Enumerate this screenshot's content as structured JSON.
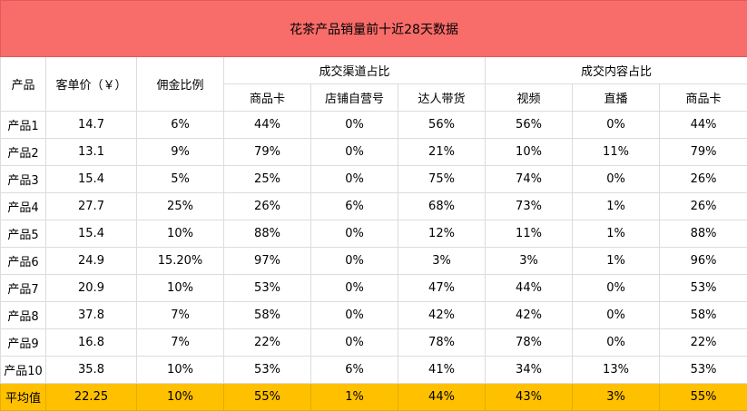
{
  "title": "花茶产品销量前十近28天数据",
  "headers": {
    "product": "产品",
    "unit_price": "客单价（￥）",
    "commission": "佣金比例",
    "channel_group": "成交渠道占比",
    "content_group": "成交内容占比",
    "channel_cols": [
      "商品卡",
      "店铺自营号",
      "达人带货"
    ],
    "content_cols": [
      "视频",
      "直播",
      "商品卡"
    ]
  },
  "rows": [
    {
      "product": "产品1",
      "price": "14.7",
      "commission": "6%",
      "ch_card": "44%",
      "ch_self": "0%",
      "ch_kol": "56%",
      "ct_video": "56%",
      "ct_live": "0%",
      "ct_card": "44%"
    },
    {
      "product": "产品2",
      "price": "13.1",
      "commission": "9%",
      "ch_card": "79%",
      "ch_self": "0%",
      "ch_kol": "21%",
      "ct_video": "10%",
      "ct_live": "11%",
      "ct_card": "79%"
    },
    {
      "product": "产品3",
      "price": "15.4",
      "commission": "5%",
      "ch_card": "25%",
      "ch_self": "0%",
      "ch_kol": "75%",
      "ct_video": "74%",
      "ct_live": "0%",
      "ct_card": "26%"
    },
    {
      "product": "产品4",
      "price": "27.7",
      "commission": "25%",
      "ch_card": "26%",
      "ch_self": "6%",
      "ch_kol": "68%",
      "ct_video": "73%",
      "ct_live": "1%",
      "ct_card": "26%"
    },
    {
      "product": "产品5",
      "price": "15.4",
      "commission": "10%",
      "ch_card": "88%",
      "ch_self": "0%",
      "ch_kol": "12%",
      "ct_video": "11%",
      "ct_live": "1%",
      "ct_card": "88%"
    },
    {
      "product": "产品6",
      "price": "24.9",
      "commission": "15.20%",
      "ch_card": "97%",
      "ch_self": "0%",
      "ch_kol": "3%",
      "ct_video": "3%",
      "ct_live": "1%",
      "ct_card": "96%"
    },
    {
      "product": "产品7",
      "price": "20.9",
      "commission": "10%",
      "ch_card": "53%",
      "ch_self": "0%",
      "ch_kol": "47%",
      "ct_video": "44%",
      "ct_live": "0%",
      "ct_card": "53%"
    },
    {
      "product": "产品8",
      "price": "37.8",
      "commission": "7%",
      "ch_card": "58%",
      "ch_self": "0%",
      "ch_kol": "42%",
      "ct_video": "42%",
      "ct_live": "0%",
      "ct_card": "58%"
    },
    {
      "product": "产品9",
      "price": "16.8",
      "commission": "7%",
      "ch_card": "22%",
      "ch_self": "0%",
      "ch_kol": "78%",
      "ct_video": "78%",
      "ct_live": "0%",
      "ct_card": "22%"
    },
    {
      "product": "产品10",
      "price": "35.8",
      "commission": "10%",
      "ch_card": "53%",
      "ch_self": "6%",
      "ch_kol": "41%",
      "ct_video": "34%",
      "ct_live": "13%",
      "ct_card": "53%"
    }
  ],
  "average": {
    "product": "平均值",
    "price": "22.25",
    "commission": "10%",
    "ch_card": "55%",
    "ch_self": "1%",
    "ch_kol": "44%",
    "ct_video": "43%",
    "ct_live": "3%",
    "ct_card": "55%"
  },
  "colors": {
    "title_bg": "#f86c69",
    "average_bg": "#ffc000",
    "gridline": "#dcdcdc"
  }
}
